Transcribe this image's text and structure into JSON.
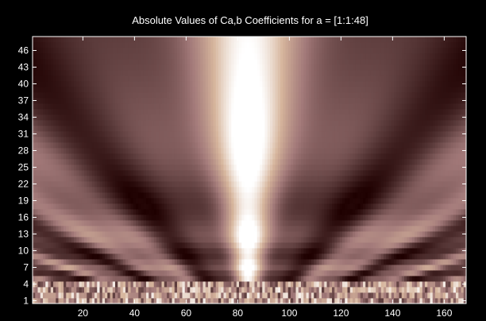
{
  "chart_data": {
    "type": "heatmap",
    "title": "Absolute Values of Ca,b Coefficients for a =  [1:1:48]",
    "xlabel": "",
    "ylabel": "",
    "xlim": [
      1,
      168
    ],
    "ylim": [
      1,
      48
    ],
    "x_ticks": [
      20,
      40,
      60,
      80,
      100,
      120,
      140,
      160
    ],
    "y_ticks": [
      1,
      4,
      7,
      10,
      13,
      16,
      19,
      22,
      25,
      28,
      31,
      34,
      37,
      40,
      43,
      46
    ],
    "colormap": "pink",
    "colormap_stops": [
      "#1e0000",
      "#5a3a3a",
      "#a37a7a",
      "#d6b59c",
      "#ffffff"
    ],
    "grid": false,
    "legend": "none"
  },
  "colors": {
    "background": "#000000",
    "text": "#ffffff",
    "axis": "#ffffff"
  }
}
